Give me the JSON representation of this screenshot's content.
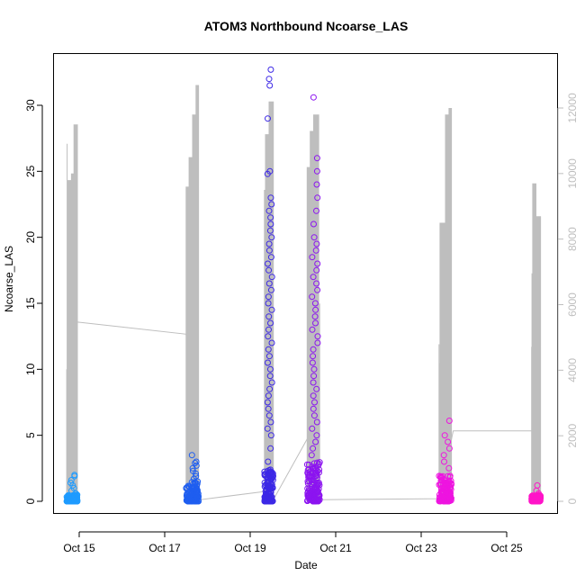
{
  "chart_data": {
    "type": "scatter",
    "title": "ATOM3 Northbound Ncoarse_LAS",
    "xlabel": "Date",
    "ylabel": "Ncoarse_LAS",
    "x_range_days": [
      "Oct 14 12:00",
      "Oct 26 00:00"
    ],
    "xticks": [
      "Oct 15",
      "Oct 17",
      "Oct 19",
      "Oct 21",
      "Oct 23",
      "Oct 25"
    ],
    "ylim": [
      0,
      33
    ],
    "yticks": [
      "0",
      "5",
      "10",
      "15",
      "20",
      "25",
      "30"
    ],
    "y2lim": [
      0,
      12800
    ],
    "y2ticks": [
      "0",
      "2000",
      "4000",
      "6000",
      "8000",
      "10000",
      "12000"
    ],
    "grid": false,
    "colors": {
      "line_series": "#bebebe",
      "cluster_colors": [
        "#1e9bff",
        "#1f5ef0",
        "#3c28e6",
        "#8c14f0",
        "#ee14e0",
        "#ff14c8"
      ]
    },
    "scatter_clusters": [
      {
        "start": "Oct 14 17:00",
        "end": "Oct 14 23:00",
        "color": "#1e9bff",
        "base_max": 0.5,
        "spikes": [
          0.6,
          0.8,
          1.0,
          1.2,
          1.4,
          1.6,
          1.9,
          2.0
        ]
      },
      {
        "start": "Oct 17 12:00",
        "end": "Oct 17 19:00",
        "color": "#1f5ef0",
        "base_max": 1.5,
        "spikes": [
          1.7,
          1.9,
          2.1,
          2.3,
          2.5,
          2.7,
          2.9,
          3.0,
          3.5
        ]
      },
      {
        "start": "Oct 19 08:00",
        "end": "Oct 19 13:00",
        "color": "#3c28e6",
        "base_max": 2.5,
        "spikes": [
          3,
          4,
          5,
          5.5,
          6,
          6.5,
          7,
          7.5,
          8,
          8.5,
          9,
          9.5,
          10,
          10.5,
          11,
          11.5,
          12,
          12.5,
          13,
          13.5,
          14,
          14.5,
          15,
          15.5,
          16,
          16.5,
          17,
          17.5,
          18,
          18.5,
          19,
          19.5,
          20,
          20.5,
          21,
          21.5,
          22,
          22.5,
          23,
          24.8,
          25,
          29,
          31.5,
          32,
          32.7
        ]
      },
      {
        "start": "Oct 20 08:00",
        "end": "Oct 20 15:00",
        "color": "#8c14f0",
        "base_max": 3.0,
        "spikes": [
          3.5,
          4,
          4.5,
          5,
          5.5,
          6,
          6.5,
          7,
          7.5,
          8,
          8.5,
          9,
          9.5,
          10,
          10.5,
          11,
          11.5,
          12,
          12.5,
          13,
          13.5,
          14,
          14.5,
          15,
          15.5,
          16,
          16.5,
          17,
          17.5,
          18,
          18.5,
          19,
          19.5,
          20,
          21,
          22,
          23,
          24,
          25,
          26,
          30.6
        ]
      },
      {
        "start": "Oct 23 10:00",
        "end": "Oct 23 17:00",
        "color": "#ee14e0",
        "base_max": 2.0,
        "spikes": [
          2.5,
          3,
          3.5,
          4,
          4.5,
          5,
          6.1
        ]
      },
      {
        "start": "Oct 25 14:00",
        "end": "Oct 25 19:00",
        "color": "#ff14c8",
        "base_max": 0.5,
        "spikes": [
          0.6,
          0.8,
          1.2
        ]
      }
    ],
    "line_y2_peaks": [
      {
        "x": "Oct 14 19:00",
        "y2": 9800
      },
      {
        "x": "Oct 14 21:00",
        "y2": 10000
      },
      {
        "x": "Oct 14 22:30",
        "y2": 11500
      },
      {
        "x": "Oct 17 13:00",
        "y2": 9600
      },
      {
        "x": "Oct 17 15:00",
        "y2": 10500
      },
      {
        "x": "Oct 17 17:00",
        "y2": 11800
      },
      {
        "x": "Oct 17 19:00",
        "y2": 12700
      },
      {
        "x": "Oct 19 08:00",
        "y2": 9500
      },
      {
        "x": "Oct 19 10:00",
        "y2": 11200
      },
      {
        "x": "Oct 19 12:00",
        "y2": 12200
      },
      {
        "x": "Oct 20 09:00",
        "y2": 10200
      },
      {
        "x": "Oct 20 11:00",
        "y2": 11300
      },
      {
        "x": "Oct 20 13:00",
        "y2": 11800
      },
      {
        "x": "Oct 23 12:00",
        "y2": 8500
      },
      {
        "x": "Oct 23 15:00",
        "y2": 11800
      },
      {
        "x": "Oct 23 17:00",
        "y2": 12000
      },
      {
        "x": "Oct 25 16:00",
        "y2": 9700
      },
      {
        "x": "Oct 25 18:00",
        "y2": 8700
      }
    ],
    "line_y2_path": [
      {
        "x": "Oct 14 18:00",
        "y2": 5500
      },
      {
        "x": "Oct 17 12:00",
        "y2": 5100
      },
      {
        "x": "Oct 17 20:00",
        "y2": 50
      },
      {
        "x": "Oct 19 08:00",
        "y2": 300
      },
      {
        "x": "Oct 19 13:00",
        "y2": 50
      },
      {
        "x": "Oct 20 08:00",
        "y2": 1900
      },
      {
        "x": "Oct 20 16:00",
        "y2": 50
      },
      {
        "x": "Oct 23 10:00",
        "y2": 80
      },
      {
        "x": "Oct 23 18:00",
        "y2": 2150
      },
      {
        "x": "Oct 25 14:00",
        "y2": 2150
      }
    ]
  }
}
